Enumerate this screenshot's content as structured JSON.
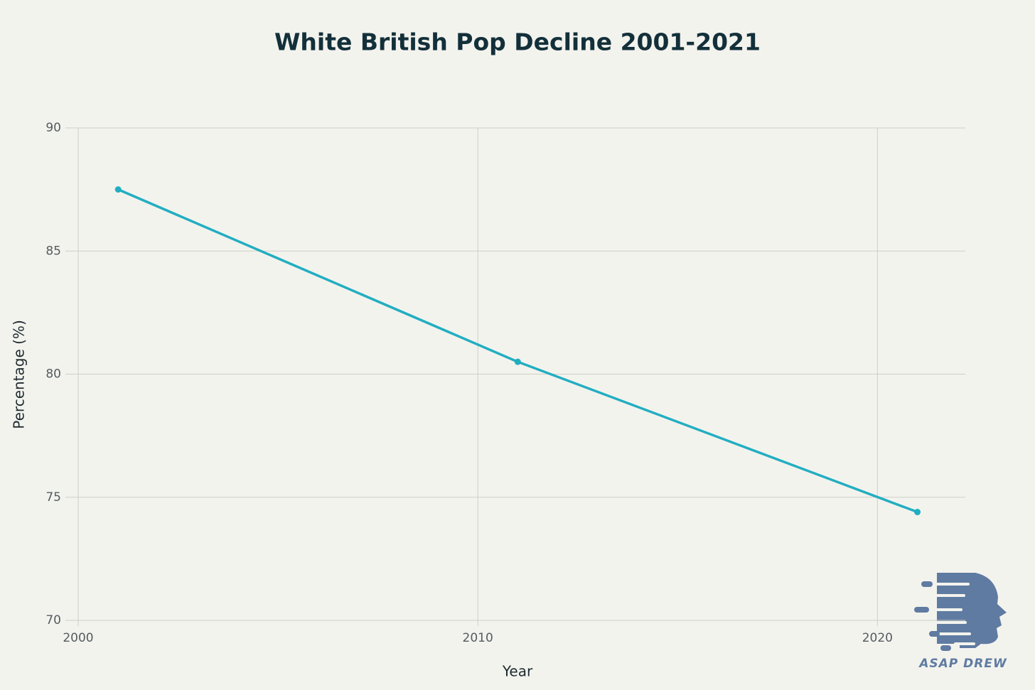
{
  "chart_data": {
    "type": "line",
    "title": "White British Pop Decline 2001-2021",
    "x_label": "Year",
    "y_label": "Percentage (%)",
    "x": [
      2001,
      2011,
      2021
    ],
    "series": [
      {
        "name": "White British",
        "color": "#22aec1",
        "values": [
          87.5,
          80.5,
          74.4
        ]
      }
    ],
    "xlim": [
      2000,
      2022.2
    ],
    "xticks": [
      2000,
      2010,
      2020
    ],
    "ylim": [
      70,
      90
    ],
    "yticks": [
      70,
      75,
      80,
      85,
      90
    ],
    "grid": true,
    "watermark": "ASAP DREW"
  }
}
